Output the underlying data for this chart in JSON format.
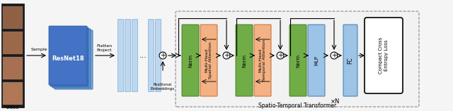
{
  "fig_width": 6.4,
  "fig_height": 1.58,
  "dpi": 100,
  "bg_color": "#f5f5f5",
  "norm_color": "#70AD47",
  "attn_spatial_color": "#F4B183",
  "attn_temporal_color": "#F4B183",
  "mlp_color": "#9DC3E6",
  "fc_color": "#9DC3E6",
  "resnet_color_front": "#4472C4",
  "resnet_color_mid": "#5B9BD5",
  "resnet_color_back": "#7AB0E0",
  "col_color": "#BDD7EE",
  "col_ec": "#7AABDC",
  "loss_label": "Compact Cross\nEntropy Loss",
  "stt_label": "Spatio-Temporal Transformer",
  "video_label": "Video",
  "sample_label": "Sample",
  "flatten_label": "Flatten\nProject",
  "positional_label": "Positional\nEmbeddings",
  "xN_label": "×N",
  "fc_label": "FC",
  "norm1_label": "Norm",
  "mhsa_label": "Multi-Head\nSpatial Attention",
  "norm2_label": "Norm",
  "mhta_label": "Multi-Head\nTemporal Attention",
  "norm3_label": "Norm",
  "mlp_label": "MLP",
  "face_colors": [
    "#B07855",
    "#A87050",
    "#9C6848",
    "#906045"
  ],
  "strip_color": "#1a1a1a"
}
